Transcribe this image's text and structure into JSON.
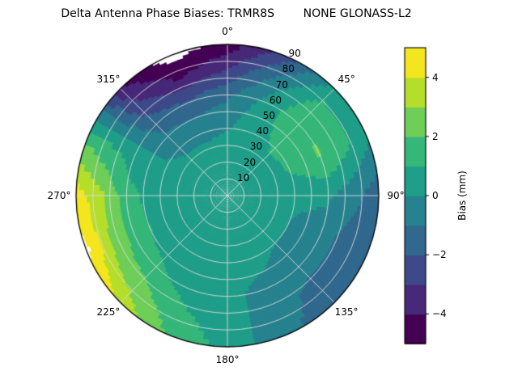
{
  "chart_data": {
    "type": "polar_filled_contour",
    "title": "Delta Antenna Phase Biases: TRMR8S        NONE GLONASS-L2",
    "azimuth_convention": "clockwise from north (0° at top)",
    "radial_axis": "zenith angle, 0 at center to 90 at edge",
    "azimuth_ticks": {
      "angles_deg": [
        0,
        45,
        90,
        135,
        180,
        225,
        270,
        315
      ],
      "labels": [
        "0°",
        "45°",
        "90°",
        "135°",
        "180°",
        "225°",
        "270°",
        "315°"
      ]
    },
    "radial_ticks": {
      "zenith_deg": [
        10,
        20,
        30,
        40,
        50,
        60,
        70,
        80,
        90
      ],
      "labels": [
        "10",
        "20",
        "30",
        "40",
        "50",
        "60",
        "70",
        "80",
        "90"
      ],
      "label_azimuth_deg": 22.5
    },
    "colorbar": {
      "label": "Bias (mm)",
      "tick_values": [
        4,
        2,
        0,
        -2,
        -4
      ],
      "tick_labels": [
        "4",
        "2",
        "0",
        "−2",
        "−4"
      ],
      "vmin": -5,
      "vmax": 5,
      "n_bands": 10
    },
    "palette_viridis10": [
      "#440154",
      "#482878",
      "#3e4989",
      "#31688e",
      "#26828e",
      "#1f9e89",
      "#35b779",
      "#6ece58",
      "#b5de2b",
      "#f4e61e"
    ],
    "grid": {
      "azimuth_deg": [
        0,
        22.5,
        45,
        67.5,
        90,
        112.5,
        135,
        157.5,
        180,
        202.5,
        225,
        247.5,
        270,
        292.5,
        315,
        337.5
      ],
      "zenith_deg": [
        0,
        15,
        30,
        45,
        60,
        75,
        90
      ],
      "bias_mm": [
        [
          0.6,
          0.6,
          0.4,
          -0.3,
          -1.2,
          -3.0,
          -4.6
        ],
        [
          0.6,
          0.6,
          0.6,
          0.6,
          0.3,
          -0.8,
          -2.6
        ],
        [
          0.6,
          0.6,
          0.8,
          1.3,
          1.9,
          1.4,
          0.3
        ],
        [
          0.6,
          0.6,
          0.7,
          1.3,
          2.1,
          1.3,
          0.2
        ],
        [
          0.6,
          0.6,
          0.5,
          0.3,
          0.2,
          -0.6,
          -1.6
        ],
        [
          0.6,
          0.5,
          0.4,
          -0.2,
          -0.5,
          -1.4,
          -1.9
        ],
        [
          0.6,
          0.5,
          0.4,
          -0.2,
          -0.6,
          -1.3,
          -1.6
        ],
        [
          0.6,
          0.5,
          0.4,
          0.2,
          -0.3,
          -0.6,
          -0.7
        ],
        [
          0.6,
          0.5,
          0.5,
          0.4,
          0.2,
          0.4,
          0.6
        ],
        [
          0.6,
          0.5,
          0.5,
          0.5,
          0.6,
          1.2,
          1.8
        ],
        [
          0.6,
          0.5,
          0.5,
          0.6,
          1.2,
          2.4,
          3.6
        ],
        [
          0.6,
          0.5,
          0.5,
          0.7,
          1.6,
          3.0,
          5.4
        ],
        [
          0.6,
          0.5,
          0.5,
          0.6,
          1.4,
          3.2,
          4.6
        ],
        [
          0.6,
          0.5,
          0.4,
          0.2,
          0.6,
          1.2,
          1.8
        ],
        [
          0.6,
          0.5,
          0.2,
          -0.5,
          -1.4,
          -2.6,
          -3.8
        ],
        [
          0.6,
          0.6,
          0.2,
          -0.6,
          -1.8,
          -4.0,
          -5.6
        ]
      ],
      "masked_white": "values beyond ±5 are left unfilled (white): notch near 340° at horizon, sliver near 255° at horizon"
    },
    "layout_hints": {
      "grid_on": true,
      "rings_zenith_deg": [
        10,
        20,
        30,
        40,
        50,
        60,
        70,
        80
      ],
      "spokes_deg": [
        0,
        45,
        90,
        135,
        180,
        225,
        270,
        315
      ],
      "colorbar_position": "right"
    }
  },
  "colors": {
    "background": "#ffffff",
    "grid_line": "#dcdcdc",
    "outline": "#000000",
    "text": "#000000"
  }
}
